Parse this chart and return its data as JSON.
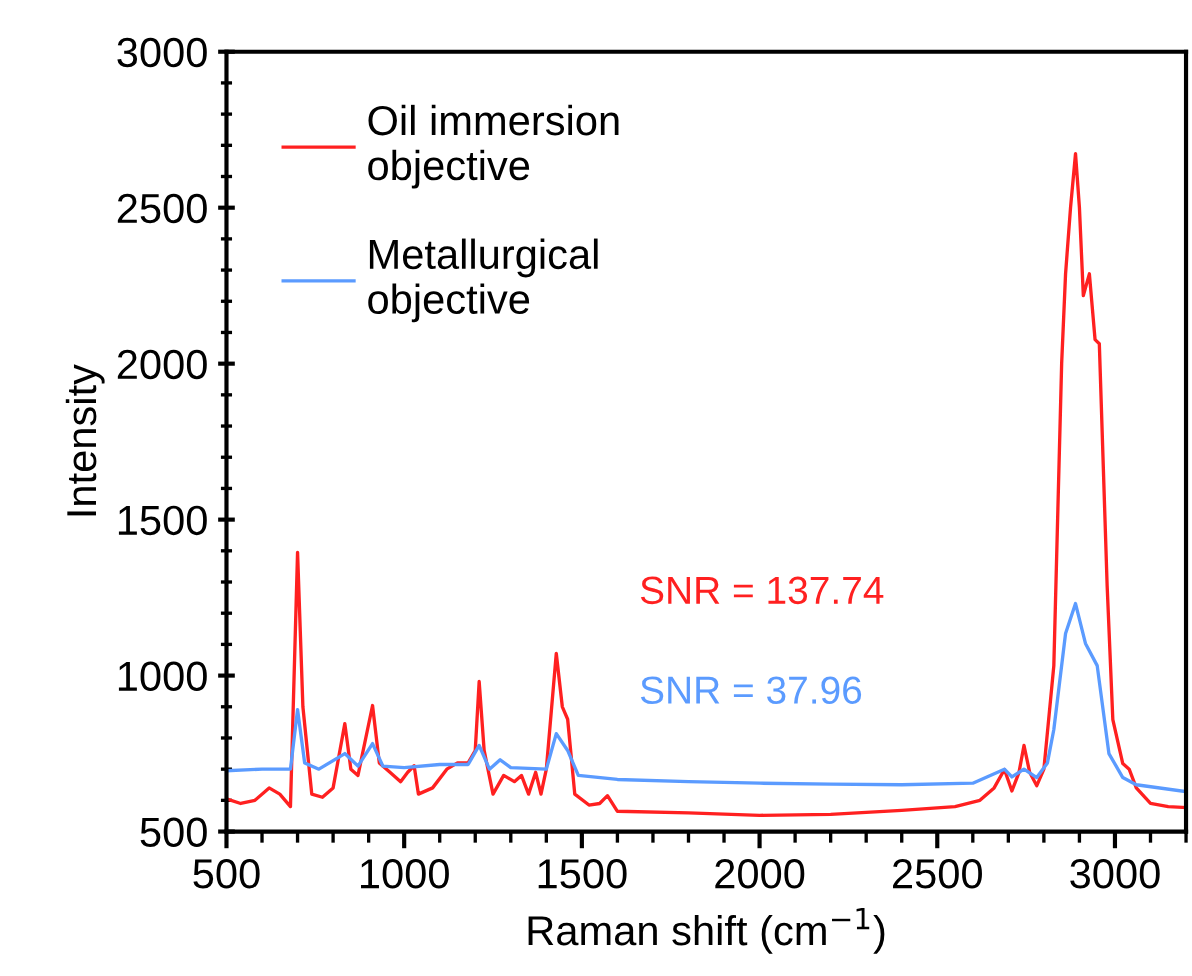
{
  "chart_data": {
    "type": "line",
    "xlabel": "Raman shift (cm$^{−1}$)",
    "ylabel": "Intensity",
    "xlim": [
      500,
      3200
    ],
    "xticks": [
      500,
      1000,
      1500,
      2000,
      2500,
      3000
    ],
    "ylim": [
      500,
      3000
    ],
    "yticks": [
      500,
      1000,
      1500,
      2000,
      2500,
      3000
    ],
    "grid": false,
    "legend": "top left",
    "marker": "none",
    "line_style": "solid",
    "annotations": [
      "SNR = 137.74",
      "SNR = 37.96"
    ],
    "series": [
      {
        "name": "Oil immersion\nobjective",
        "color": "#ff2020",
        "x": [
          500,
          540,
          580,
          620,
          650,
          680,
          700,
          715,
          740,
          770,
          800,
          833,
          850,
          870,
          911,
          930,
          960,
          990,
          1010,
          1028,
          1040,
          1080,
          1120,
          1150,
          1180,
          1200,
          1211,
          1225,
          1250,
          1280,
          1310,
          1330,
          1350,
          1370,
          1385,
          1400,
          1428,
          1445,
          1460,
          1480,
          1520,
          1550,
          1572,
          1600,
          1800,
          2000,
          2200,
          2400,
          2550,
          2620,
          2660,
          2689,
          2710,
          2730,
          2744,
          2760,
          2780,
          2800,
          2828,
          2850,
          2861,
          2875,
          2889,
          2900,
          2911,
          2928,
          2944,
          2956,
          2978,
          2994,
          3022,
          3040,
          3060,
          3100,
          3150,
          3200
        ],
        "values": [
          605,
          590,
          600,
          640,
          620,
          580,
          1395,
          900,
          620,
          610,
          640,
          846,
          700,
          680,
          904,
          720,
          690,
          660,
          690,
          711,
          620,
          640,
          700,
          720,
          720,
          760,
          981,
          760,
          620,
          680,
          660,
          680,
          620,
          690,
          620,
          700,
          1071,
          900,
          860,
          620,
          585,
          590,
          615,
          565,
          560,
          552,
          555,
          568,
          580,
          600,
          640,
          699,
          630,
          690,
          776,
          690,
          647,
          700,
          1032,
          2000,
          2288,
          2500,
          2673,
          2500,
          2218,
          2288,
          2077,
          2064,
          1288,
          859,
          718,
          700,
          640,
          590,
          580,
          577
        ]
      },
      {
        "name": "Metallurgical\nobjective",
        "color": "#5b9bff",
        "x": [
          500,
          600,
          680,
          700,
          720,
          760,
          833,
          870,
          911,
          940,
          1000,
          1100,
          1180,
          1211,
          1240,
          1270,
          1300,
          1400,
          1428,
          1460,
          1490,
          1600,
          1800,
          2000,
          2200,
          2400,
          2600,
          2689,
          2710,
          2744,
          2780,
          2810,
          2828,
          2861,
          2889,
          2917,
          2950,
          2983,
          3022,
          3060,
          3200
        ],
        "values": [
          695,
          700,
          700,
          891,
          720,
          700,
          750,
          710,
          782,
          710,
          705,
          715,
          715,
          776,
          700,
          730,
          705,
          700,
          814,
          760,
          680,
          667,
          660,
          655,
          652,
          650,
          655,
          700,
          675,
          700,
          673,
          720,
          827,
          1135,
          1231,
          1103,
          1032,
          750,
          673,
          650,
          628
        ]
      }
    ]
  }
}
